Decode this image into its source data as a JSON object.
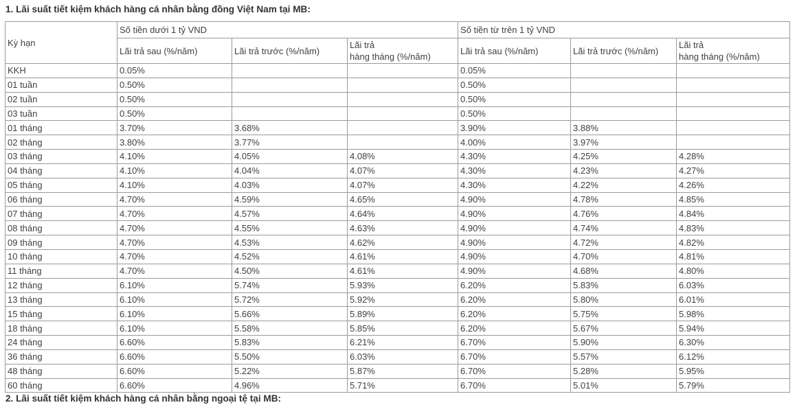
{
  "page": {
    "heading_1": "1. Lãi suất tiết kiệm khách hàng cá nhân bằng đồng Việt Nam tại MB:",
    "heading_2_truncated": "2. Lãi suất tiết kiệm khách hàng cá nhân bằng ngoại tệ tại MB:"
  },
  "table": {
    "term_header": "Kỳ hạn",
    "groups": [
      {
        "label": "Số tiền dưới 1 tỷ VND"
      },
      {
        "label": "Số tiền từ trên 1 tỷ VND"
      }
    ],
    "sub_headers": {
      "pay_after": "Lãi trả sau (%/năm)",
      "pay_before": "Lãi trả trước (%/năm)",
      "monthly_line1": "Lãi trả",
      "monthly_line2": "hàng tháng (%/năm)"
    },
    "rows": [
      {
        "term": "KKH",
        "values": [
          "0.05%",
          "",
          "",
          "0.05%",
          "",
          ""
        ]
      },
      {
        "term": "01 tuần",
        "values": [
          "0.50%",
          "",
          "",
          "0.50%",
          "",
          ""
        ]
      },
      {
        "term": "02 tuần",
        "values": [
          "0.50%",
          "",
          "",
          "0.50%",
          "",
          ""
        ]
      },
      {
        "term": "03 tuần",
        "values": [
          "0.50%",
          "",
          "",
          "0.50%",
          "",
          ""
        ]
      },
      {
        "term": "01 tháng",
        "values": [
          "3.70%",
          "3.68%",
          "",
          "3.90%",
          "3.88%",
          ""
        ]
      },
      {
        "term": "02 tháng",
        "values": [
          "3.80%",
          "3.77%",
          "",
          "4.00%",
          "3.97%",
          ""
        ]
      },
      {
        "term": "03 tháng",
        "values": [
          "4.10%",
          "4.05%",
          "4.08%",
          "4.30%",
          "4.25%",
          "4.28%"
        ]
      },
      {
        "term": "04 tháng",
        "values": [
          "4.10%",
          "4.04%",
          "4.07%",
          "4.30%",
          "4.23%",
          "4.27%"
        ]
      },
      {
        "term": "05 tháng",
        "values": [
          "4.10%",
          "4.03%",
          "4.07%",
          "4.30%",
          "4.22%",
          "4.26%"
        ]
      },
      {
        "term": "06 tháng",
        "values": [
          "4.70%",
          "4.59%",
          "4.65%",
          "4.90%",
          "4.78%",
          "4.85%"
        ]
      },
      {
        "term": "07 tháng",
        "values": [
          "4.70%",
          "4.57%",
          "4.64%",
          "4.90%",
          "4.76%",
          "4.84%"
        ]
      },
      {
        "term": "08 tháng",
        "values": [
          "4.70%",
          "4.55%",
          "4.63%",
          "4.90%",
          "4.74%",
          "4.83%"
        ]
      },
      {
        "term": "09 tháng",
        "values": [
          "4.70%",
          "4.53%",
          "4.62%",
          "4.90%",
          "4.72%",
          "4.82%"
        ]
      },
      {
        "term": "10 tháng",
        "values": [
          "4.70%",
          "4.52%",
          "4.61%",
          "4.90%",
          "4.70%",
          "4.81%"
        ]
      },
      {
        "term": "11 tháng",
        "values": [
          "4.70%",
          "4.50%",
          "4.61%",
          "4.90%",
          "4.68%",
          "4.80%"
        ]
      },
      {
        "term": "12 tháng",
        "values": [
          "6.10%",
          "5.74%",
          "5.93%",
          "6.20%",
          "5.83%",
          "6.03%"
        ]
      },
      {
        "term": "13 tháng",
        "values": [
          "6.10%",
          "5.72%",
          "5.92%",
          "6.20%",
          "5.80%",
          "6.01%"
        ]
      },
      {
        "term": "15 tháng",
        "values": [
          "6.10%",
          "5.66%",
          "5.89%",
          "6.20%",
          "5.75%",
          "5.98%"
        ]
      },
      {
        "term": "18 tháng",
        "values": [
          "6.10%",
          "5.58%",
          "5.85%",
          "6.20%",
          "5.67%",
          "5.94%"
        ]
      },
      {
        "term": "24 tháng",
        "values": [
          "6.60%",
          "5.83%",
          "6.21%",
          "6.70%",
          "5.90%",
          "6.30%"
        ]
      },
      {
        "term": "36 tháng",
        "values": [
          "6.60%",
          "5.50%",
          "6.03%",
          "6.70%",
          "5.57%",
          "6.12%"
        ]
      },
      {
        "term": "48 tháng",
        "values": [
          "6.60%",
          "5.22%",
          "5.87%",
          "6.70%",
          "5.28%",
          "5.95%"
        ]
      },
      {
        "term": "60 tháng",
        "values": [
          "6.60%",
          "4.96%",
          "5.71%",
          "6.70%",
          "5.01%",
          "5.79%"
        ]
      }
    ]
  },
  "colors": {
    "heading_text": "#333333",
    "cell_text": "#404040",
    "table_border": "#9a9a9a",
    "background": "#ffffff"
  }
}
